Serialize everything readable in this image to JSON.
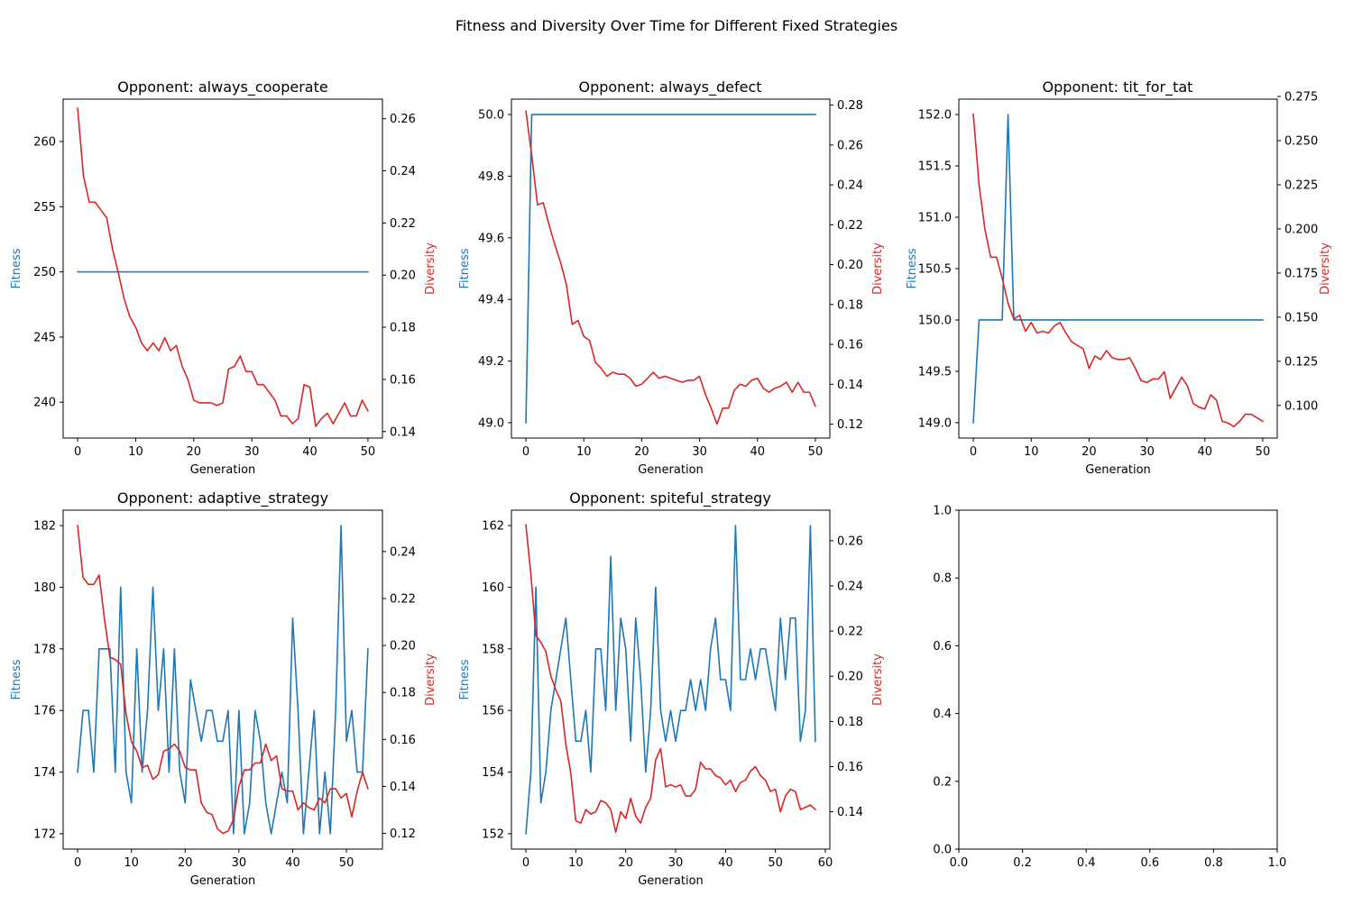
{
  "figure": {
    "suptitle": "Fitness and Diversity Over Time for Different Fixed Strategies"
  },
  "colors": {
    "fitness": "#1f77b4",
    "diversity": "#d62728",
    "axes": "#000000",
    "background": "#ffffff"
  },
  "chart_data": [
    {
      "type": "line",
      "title": "Opponent: always_cooperate",
      "xlabel": "Generation",
      "ylabel": "Fitness",
      "y2label": "Diversity",
      "xlim": [
        -2.5,
        52.5
      ],
      "ylim": [
        237.25,
        263.25
      ],
      "y2lim": [
        0.1375,
        0.2675
      ],
      "xticks": [
        0,
        10,
        20,
        30,
        40,
        50
      ],
      "yticks": [
        240,
        245,
        250,
        255,
        260
      ],
      "y2ticks": [
        0.14,
        0.16,
        0.18,
        0.2,
        0.22,
        0.24,
        0.26
      ],
      "grid": false,
      "series": [
        {
          "name": "Fitness",
          "axis": "left",
          "x": [
            0,
            50
          ],
          "y": [
            250,
            250
          ]
        },
        {
          "name": "Diversity",
          "axis": "right",
          "x": [
            0,
            1,
            2,
            3,
            4,
            5,
            6,
            7,
            8,
            9,
            10,
            11,
            12,
            13,
            14,
            15,
            16,
            17,
            18,
            19,
            20,
            21,
            22,
            23,
            24,
            25,
            26,
            27,
            28,
            29,
            30,
            31,
            32,
            33,
            34,
            35,
            36,
            37,
            38,
            39,
            40,
            41,
            42,
            43,
            44,
            45,
            46,
            47,
            48,
            49,
            50
          ],
          "y": [
            0.264,
            0.238,
            0.228,
            0.228,
            0.225,
            0.222,
            0.21,
            0.201,
            0.191,
            0.184,
            0.18,
            0.174,
            0.171,
            0.174,
            0.171,
            0.176,
            0.171,
            0.173,
            0.165,
            0.16,
            0.152,
            0.151,
            0.151,
            0.151,
            0.15,
            0.151,
            0.164,
            0.165,
            0.169,
            0.163,
            0.163,
            0.158,
            0.158,
            0.155,
            0.152,
            0.146,
            0.146,
            0.143,
            0.145,
            0.158,
            0.157,
            0.142,
            0.145,
            0.147,
            0.143,
            0.147,
            0.151,
            0.146,
            0.146,
            0.152,
            0.148
          ]
        }
      ]
    },
    {
      "type": "line",
      "title": "Opponent: always_defect",
      "xlabel": "Generation",
      "ylabel": "Fitness",
      "y2label": "Diversity",
      "xlim": [
        -2.5,
        52.5
      ],
      "ylim": [
        48.95,
        50.05
      ],
      "y2lim": [
        0.113,
        0.283
      ],
      "xticks": [
        0,
        10,
        20,
        30,
        40,
        50
      ],
      "yticks": [
        49.0,
        49.2,
        49.4,
        49.6,
        49.8,
        50.0
      ],
      "y2ticks": [
        0.12,
        0.14,
        0.16,
        0.18,
        0.2,
        0.22,
        0.24,
        0.26,
        0.28
      ],
      "grid": false,
      "series": [
        {
          "name": "Fitness",
          "axis": "left",
          "x": [
            0,
            1,
            50
          ],
          "y": [
            49.0,
            50.0,
            50.0
          ]
        },
        {
          "name": "Diversity",
          "axis": "right",
          "x": [
            0,
            1,
            2,
            3,
            4,
            5,
            6,
            7,
            8,
            9,
            10,
            11,
            12,
            13,
            14,
            15,
            16,
            17,
            18,
            19,
            20,
            21,
            22,
            23,
            24,
            25,
            26,
            27,
            28,
            29,
            30,
            31,
            32,
            33,
            34,
            35,
            36,
            37,
            38,
            39,
            40,
            41,
            42,
            43,
            44,
            45,
            46,
            47,
            48,
            49,
            50
          ],
          "y": [
            0.277,
            0.255,
            0.23,
            0.231,
            0.22,
            0.21,
            0.201,
            0.19,
            0.17,
            0.172,
            0.164,
            0.162,
            0.151,
            0.148,
            0.144,
            0.146,
            0.145,
            0.145,
            0.143,
            0.139,
            0.14,
            0.143,
            0.146,
            0.143,
            0.144,
            0.143,
            0.142,
            0.141,
            0.142,
            0.142,
            0.144,
            0.135,
            0.128,
            0.12,
            0.128,
            0.128,
            0.137,
            0.14,
            0.139,
            0.142,
            0.143,
            0.138,
            0.136,
            0.138,
            0.139,
            0.141,
            0.136,
            0.141,
            0.136,
            0.136,
            0.129
          ]
        }
      ]
    },
    {
      "type": "line",
      "title": "Opponent: tit_for_tat",
      "xlabel": "Generation",
      "ylabel": "Fitness",
      "y2label": "Diversity",
      "xlim": [
        -2.5,
        52.5
      ],
      "ylim": [
        148.85,
        152.15
      ],
      "y2lim": [
        0.0815,
        0.2735
      ],
      "xticks": [
        0,
        10,
        20,
        30,
        40,
        50
      ],
      "yticks": [
        149.0,
        149.5,
        150.0,
        150.5,
        151.0,
        151.5,
        152.0
      ],
      "y2ticks": [
        0.1,
        0.125,
        0.15,
        0.175,
        0.2,
        0.225,
        0.25,
        0.275
      ],
      "grid": false,
      "series": [
        {
          "name": "Fitness",
          "axis": "left",
          "x": [
            0,
            1,
            5,
            6,
            7,
            50
          ],
          "y": [
            149.0,
            150.0,
            150.0,
            152.0,
            150.0,
            150.0
          ]
        },
        {
          "name": "Diversity",
          "axis": "right",
          "x": [
            0,
            1,
            2,
            3,
            4,
            5,
            6,
            7,
            8,
            9,
            10,
            11,
            12,
            13,
            14,
            15,
            16,
            17,
            18,
            19,
            20,
            21,
            22,
            23,
            24,
            25,
            26,
            27,
            28,
            29,
            30,
            31,
            32,
            33,
            34,
            35,
            36,
            37,
            38,
            39,
            40,
            41,
            42,
            43,
            44,
            45,
            46,
            47,
            48,
            49,
            50
          ],
          "y": [
            0.265,
            0.225,
            0.2,
            0.184,
            0.184,
            0.172,
            0.158,
            0.149,
            0.151,
            0.142,
            0.147,
            0.141,
            0.142,
            0.141,
            0.145,
            0.147,
            0.141,
            0.136,
            0.134,
            0.132,
            0.121,
            0.128,
            0.126,
            0.131,
            0.127,
            0.126,
            0.126,
            0.127,
            0.121,
            0.114,
            0.113,
            0.115,
            0.115,
            0.119,
            0.104,
            0.11,
            0.116,
            0.111,
            0.101,
            0.099,
            0.098,
            0.106,
            0.103,
            0.091,
            0.09,
            0.088,
            0.091,
            0.095,
            0.095,
            0.093,
            0.091
          ]
        }
      ]
    },
    {
      "type": "line",
      "title": "Opponent: adaptive_strategy",
      "xlabel": "Generation",
      "ylabel": "Fitness",
      "y2label": "Diversity",
      "xlim": [
        -2.7,
        56.7
      ],
      "ylim": [
        171.5,
        182.5
      ],
      "y2lim": [
        0.1133,
        0.2576
      ],
      "xticks": [
        0,
        10,
        20,
        30,
        40,
        50
      ],
      "yticks": [
        172,
        174,
        176,
        178,
        180,
        182
      ],
      "y2ticks": [
        0.12,
        0.14,
        0.16,
        0.18,
        0.2,
        0.22,
        0.24
      ],
      "grid": false,
      "series": [
        {
          "name": "Fitness",
          "axis": "left",
          "x": [
            0,
            1,
            2,
            3,
            4,
            5,
            6,
            7,
            8,
            9,
            10,
            11,
            12,
            13,
            14,
            15,
            16,
            17,
            18,
            19,
            20,
            21,
            22,
            23,
            24,
            25,
            26,
            27,
            28,
            29,
            30,
            31,
            32,
            33,
            34,
            35,
            36,
            37,
            38,
            39,
            40,
            41,
            42,
            43,
            44,
            45,
            46,
            47,
            48,
            49,
            50,
            51,
            52,
            53,
            54
          ],
          "y": [
            174,
            176,
            176,
            174,
            178,
            178,
            178,
            174,
            180,
            174,
            173,
            178,
            174,
            176,
            180,
            176,
            178,
            174,
            178,
            174,
            173,
            177,
            176,
            175,
            176,
            176,
            175,
            175,
            176,
            172,
            176,
            172,
            173,
            176,
            175,
            173,
            172,
            173,
            174,
            173,
            179,
            176,
            172,
            174,
            176,
            172,
            174,
            172,
            176,
            182,
            175,
            176,
            174,
            174,
            178
          ]
        },
        {
          "name": "Diversity",
          "axis": "right",
          "x": [
            0,
            1,
            2,
            3,
            4,
            5,
            6,
            7,
            8,
            9,
            10,
            11,
            12,
            13,
            14,
            15,
            16,
            17,
            18,
            19,
            20,
            21,
            22,
            23,
            24,
            25,
            26,
            27,
            28,
            29,
            30,
            31,
            32,
            33,
            34,
            35,
            36,
            37,
            38,
            39,
            40,
            41,
            42,
            43,
            44,
            45,
            46,
            47,
            48,
            49,
            50,
            51,
            52,
            53,
            54
          ],
          "y": [
            0.251,
            0.229,
            0.226,
            0.226,
            0.23,
            0.211,
            0.195,
            0.194,
            0.192,
            0.171,
            0.159,
            0.155,
            0.148,
            0.149,
            0.143,
            0.145,
            0.155,
            0.156,
            0.158,
            0.155,
            0.148,
            0.147,
            0.147,
            0.133,
            0.129,
            0.128,
            0.122,
            0.12,
            0.121,
            0.126,
            0.14,
            0.147,
            0.147,
            0.15,
            0.15,
            0.158,
            0.151,
            0.153,
            0.139,
            0.138,
            0.138,
            0.13,
            0.133,
            0.131,
            0.13,
            0.135,
            0.133,
            0.139,
            0.139,
            0.135,
            0.137,
            0.127,
            0.138,
            0.146,
            0.139
          ]
        }
      ]
    },
    {
      "type": "line",
      "title": "Opponent: spiteful_strategy",
      "xlabel": "Generation",
      "ylabel": "Fitness",
      "y2label": "Diversity",
      "xlim": [
        -2.9,
        60.9
      ],
      "ylim": [
        151.5,
        162.5
      ],
      "y2lim": [
        0.1235,
        0.2735
      ],
      "xticks": [
        0,
        10,
        20,
        30,
        40,
        50,
        60
      ],
      "yticks": [
        152,
        154,
        156,
        158,
        160,
        162
      ],
      "y2ticks": [
        0.14,
        0.16,
        0.18,
        0.2,
        0.22,
        0.24,
        0.26
      ],
      "grid": false,
      "series": [
        {
          "name": "Fitness",
          "axis": "left",
          "x": [
            0,
            1,
            2,
            3,
            4,
            5,
            6,
            7,
            8,
            9,
            10,
            11,
            12,
            13,
            14,
            15,
            16,
            17,
            18,
            19,
            20,
            21,
            22,
            23,
            24,
            25,
            26,
            27,
            28,
            29,
            30,
            31,
            32,
            33,
            34,
            35,
            36,
            37,
            38,
            39,
            40,
            41,
            42,
            43,
            44,
            45,
            46,
            47,
            48,
            49,
            50,
            51,
            52,
            53,
            54,
            55,
            56,
            57,
            58
          ],
          "y": [
            152,
            154,
            160,
            153,
            154,
            156,
            157,
            158,
            159,
            157,
            155,
            155,
            156,
            154,
            158,
            158,
            156,
            161,
            156,
            159,
            158,
            155,
            159,
            157,
            154,
            156,
            160,
            156,
            155,
            156,
            155,
            156,
            156,
            157,
            156,
            157,
            156,
            158,
            159,
            157,
            157,
            156,
            162,
            157,
            157,
            158,
            157,
            158,
            158,
            157,
            156,
            159,
            157,
            159,
            159,
            155,
            156,
            162,
            155
          ]
        },
        {
          "name": "Diversity",
          "axis": "right",
          "x": [
            0,
            1,
            2,
            3,
            4,
            5,
            6,
            7,
            8,
            9,
            10,
            11,
            12,
            13,
            14,
            15,
            16,
            17,
            18,
            19,
            20,
            21,
            22,
            23,
            24,
            25,
            26,
            27,
            28,
            29,
            30,
            31,
            32,
            33,
            34,
            35,
            36,
            37,
            38,
            39,
            40,
            41,
            42,
            43,
            44,
            45,
            46,
            47,
            48,
            49,
            50,
            51,
            52,
            53,
            54,
            55,
            56,
            57,
            58
          ],
          "y": [
            0.267,
            0.245,
            0.218,
            0.215,
            0.211,
            0.2,
            0.194,
            0.189,
            0.17,
            0.157,
            0.136,
            0.135,
            0.141,
            0.139,
            0.14,
            0.145,
            0.144,
            0.141,
            0.131,
            0.14,
            0.137,
            0.146,
            0.138,
            0.135,
            0.142,
            0.146,
            0.163,
            0.168,
            0.151,
            0.152,
            0.151,
            0.152,
            0.147,
            0.147,
            0.15,
            0.162,
            0.159,
            0.159,
            0.156,
            0.155,
            0.152,
            0.154,
            0.149,
            0.153,
            0.154,
            0.158,
            0.16,
            0.156,
            0.154,
            0.149,
            0.15,
            0.14,
            0.147,
            0.15,
            0.149,
            0.141,
            0.142,
            0.143,
            0.141
          ]
        }
      ]
    },
    {
      "type": "line",
      "title": "",
      "xlabel": "",
      "ylabel": "",
      "xlim": [
        0.0,
        1.0
      ],
      "ylim": [
        0.0,
        1.0
      ],
      "xticks": [
        0.0,
        0.2,
        0.4,
        0.6,
        0.8,
        1.0
      ],
      "yticks": [
        0.0,
        0.2,
        0.4,
        0.6,
        0.8,
        1.0
      ],
      "grid": false,
      "series": []
    }
  ]
}
